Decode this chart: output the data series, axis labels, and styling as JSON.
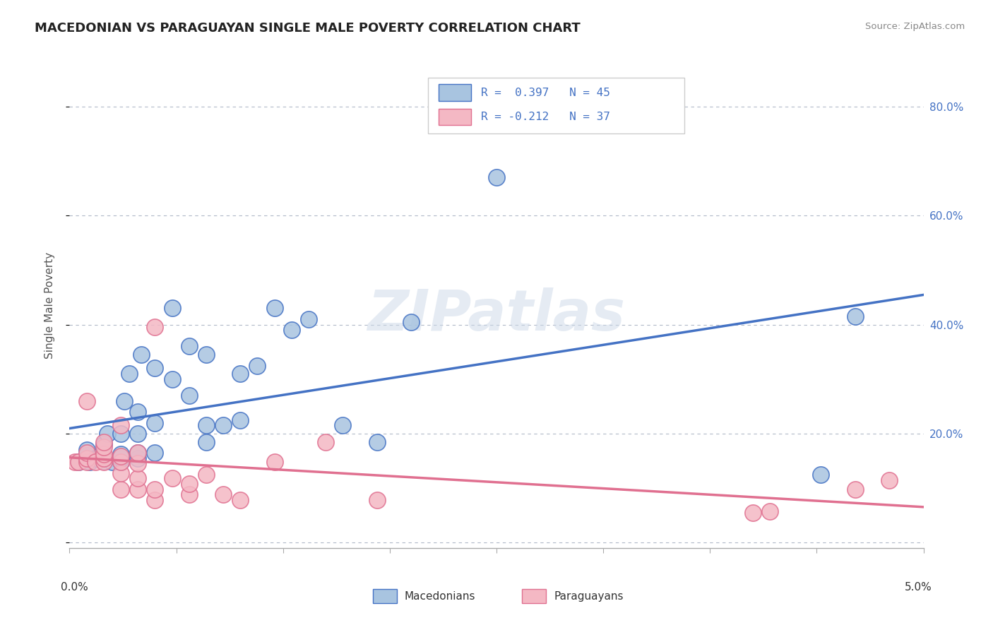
{
  "title": "MACEDONIAN VS PARAGUAYAN SINGLE MALE POVERTY CORRELATION CHART",
  "source": "Source: ZipAtlas.com",
  "ylabel": "Single Male Poverty",
  "xlim": [
    0.0,
    0.05
  ],
  "ylim": [
    -0.01,
    0.88
  ],
  "ytick_positions": [
    0.0,
    0.2,
    0.4,
    0.6,
    0.8
  ],
  "ytick_labels_right": [
    "",
    "20.0%",
    "40.0%",
    "60.0%",
    "80.0%"
  ],
  "macedonian_fill": "#a8c4e0",
  "macedonian_edge": "#4472c4",
  "paraguayan_fill": "#f4b8c4",
  "paraguayan_edge": "#e07090",
  "line_mac_color": "#4472c4",
  "line_par_color": "#e07090",
  "watermark": "ZIPatlas",
  "background": "#ffffff",
  "mac_x": [
    0.0005,
    0.001,
    0.001,
    0.001,
    0.0012,
    0.0015,
    0.0018,
    0.002,
    0.002,
    0.0022,
    0.0025,
    0.003,
    0.003,
    0.003,
    0.003,
    0.0032,
    0.0035,
    0.004,
    0.004,
    0.004,
    0.004,
    0.0042,
    0.005,
    0.005,
    0.005,
    0.006,
    0.006,
    0.007,
    0.007,
    0.008,
    0.008,
    0.008,
    0.009,
    0.01,
    0.01,
    0.011,
    0.012,
    0.013,
    0.014,
    0.016,
    0.018,
    0.02,
    0.025,
    0.044,
    0.046
  ],
  "mac_y": [
    0.148,
    0.152,
    0.16,
    0.17,
    0.148,
    0.155,
    0.16,
    0.15,
    0.18,
    0.2,
    0.148,
    0.148,
    0.155,
    0.162,
    0.2,
    0.26,
    0.31,
    0.155,
    0.165,
    0.2,
    0.24,
    0.345,
    0.165,
    0.22,
    0.32,
    0.3,
    0.43,
    0.27,
    0.36,
    0.185,
    0.215,
    0.345,
    0.215,
    0.225,
    0.31,
    0.325,
    0.43,
    0.39,
    0.41,
    0.215,
    0.185,
    0.405,
    0.67,
    0.125,
    0.415
  ],
  "par_x": [
    0.0003,
    0.0005,
    0.001,
    0.001,
    0.001,
    0.001,
    0.0015,
    0.002,
    0.002,
    0.002,
    0.002,
    0.002,
    0.003,
    0.003,
    0.003,
    0.003,
    0.003,
    0.004,
    0.004,
    0.004,
    0.004,
    0.005,
    0.005,
    0.005,
    0.006,
    0.007,
    0.007,
    0.008,
    0.009,
    0.01,
    0.012,
    0.015,
    0.018,
    0.04,
    0.041,
    0.046,
    0.048
  ],
  "par_y": [
    0.148,
    0.148,
    0.148,
    0.155,
    0.165,
    0.26,
    0.148,
    0.148,
    0.155,
    0.162,
    0.175,
    0.185,
    0.098,
    0.128,
    0.148,
    0.158,
    0.215,
    0.098,
    0.118,
    0.145,
    0.165,
    0.078,
    0.098,
    0.395,
    0.118,
    0.088,
    0.108,
    0.125,
    0.088,
    0.078,
    0.148,
    0.185,
    0.078,
    0.055,
    0.058,
    0.098,
    0.115
  ]
}
